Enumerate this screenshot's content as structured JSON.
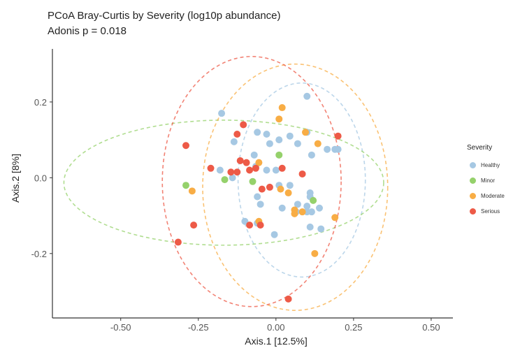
{
  "chart_data": {
    "type": "scatter",
    "title": "PCoA Bray-Curtis by Severity (log10p abundance)",
    "subtitle": "Adonis p = 0.018",
    "xlabel": "Axis.1   [12.5%]",
    "ylabel": "Axis.2   [8%]",
    "xlim": [
      -0.72,
      0.57
    ],
    "ylim": [
      -0.37,
      0.34
    ],
    "xticks": [
      -0.5,
      -0.25,
      0.0,
      0.25,
      0.5
    ],
    "xtick_labels": [
      "-0.50",
      "-0.25",
      "0.00",
      "0.25",
      "0.50"
    ],
    "yticks": [
      -0.2,
      0.0,
      0.2
    ],
    "ytick_labels": [
      "-0.2",
      "0.0",
      "0.2"
    ],
    "grid": false,
    "legend": {
      "title": "Severity",
      "position": "right"
    },
    "series": [
      {
        "name": "Healthy",
        "color": "#a6c8e3",
        "ellipse": {
          "cx": 0.083,
          "cy": -0.006,
          "rx": 0.205,
          "ry": 0.256
        },
        "points": [
          [
            0.1,
            0.215
          ],
          [
            -0.175,
            0.17
          ],
          [
            -0.135,
            0.095
          ],
          [
            -0.06,
            0.12
          ],
          [
            -0.03,
            0.115
          ],
          [
            0.045,
            0.11
          ],
          [
            0.1,
            0.12
          ],
          [
            -0.02,
            0.09
          ],
          [
            0.01,
            0.1
          ],
          [
            0.07,
            0.09
          ],
          [
            0.165,
            0.075
          ],
          [
            0.19,
            0.075
          ],
          [
            0.2,
            0.075
          ],
          [
            0.115,
            0.06
          ],
          [
            -0.07,
            0.06
          ],
          [
            -0.18,
            0.02
          ],
          [
            -0.14,
            0.0
          ],
          [
            -0.065,
            0.03
          ],
          [
            -0.03,
            0.02
          ],
          [
            0.0,
            0.02
          ],
          [
            0.01,
            -0.02
          ],
          [
            0.045,
            -0.02
          ],
          [
            0.11,
            -0.04
          ],
          [
            0.11,
            -0.05
          ],
          [
            -0.06,
            -0.05
          ],
          [
            -0.05,
            -0.07
          ],
          [
            0.02,
            -0.08
          ],
          [
            0.07,
            -0.07
          ],
          [
            0.1,
            -0.075
          ],
          [
            0.14,
            -0.08
          ],
          [
            0.065,
            -0.09
          ],
          [
            0.1,
            -0.09
          ],
          [
            0.115,
            -0.09
          ],
          [
            -0.06,
            -0.12
          ],
          [
            -0.1,
            -0.115
          ],
          [
            0.11,
            -0.13
          ],
          [
            0.145,
            -0.135
          ],
          [
            -0.005,
            -0.15
          ]
        ]
      },
      {
        "name": "Minor",
        "color": "#95d16b",
        "ellipse": {
          "cx": -0.168,
          "cy": -0.013,
          "rx": 0.515,
          "ry": 0.165
        },
        "points": [
          [
            0.01,
            0.06
          ],
          [
            -0.165,
            -0.005
          ],
          [
            -0.075,
            -0.01
          ],
          [
            -0.29,
            -0.02
          ],
          [
            0.12,
            -0.06
          ]
        ]
      },
      {
        "name": "Moderate",
        "color": "#f8ad45",
        "ellipse": {
          "cx": 0.062,
          "cy": -0.025,
          "rx": 0.298,
          "ry": 0.325
        },
        "points": [
          [
            0.02,
            0.185
          ],
          [
            0.01,
            0.155
          ],
          [
            0.095,
            0.12
          ],
          [
            0.135,
            0.09
          ],
          [
            -0.055,
            0.04
          ],
          [
            -0.27,
            -0.035
          ],
          [
            0.015,
            -0.03
          ],
          [
            0.04,
            -0.04
          ],
          [
            -0.055,
            -0.115
          ],
          [
            0.06,
            -0.085
          ],
          [
            0.06,
            -0.095
          ],
          [
            0.19,
            -0.105
          ],
          [
            0.125,
            -0.2
          ],
          [
            0.085,
            -0.09
          ]
        ]
      },
      {
        "name": "Serious",
        "color": "#ed5a47",
        "ellipse": {
          "cx": -0.078,
          "cy": -0.01,
          "rx": 0.288,
          "ry": 0.33
        },
        "points": [
          [
            -0.105,
            0.14
          ],
          [
            -0.125,
            0.115
          ],
          [
            0.2,
            0.11
          ],
          [
            -0.29,
            0.085
          ],
          [
            -0.115,
            0.045
          ],
          [
            -0.095,
            0.04
          ],
          [
            -0.21,
            0.025
          ],
          [
            -0.145,
            0.015
          ],
          [
            -0.125,
            0.015
          ],
          [
            -0.085,
            0.02
          ],
          [
            -0.065,
            0.025
          ],
          [
            0.02,
            0.025
          ],
          [
            0.085,
            0.01
          ],
          [
            -0.02,
            -0.025
          ],
          [
            -0.045,
            -0.03
          ],
          [
            -0.265,
            -0.125
          ],
          [
            -0.085,
            -0.125
          ],
          [
            -0.05,
            -0.125
          ],
          [
            -0.315,
            -0.17
          ],
          [
            0.04,
            -0.32
          ]
        ]
      }
    ]
  }
}
